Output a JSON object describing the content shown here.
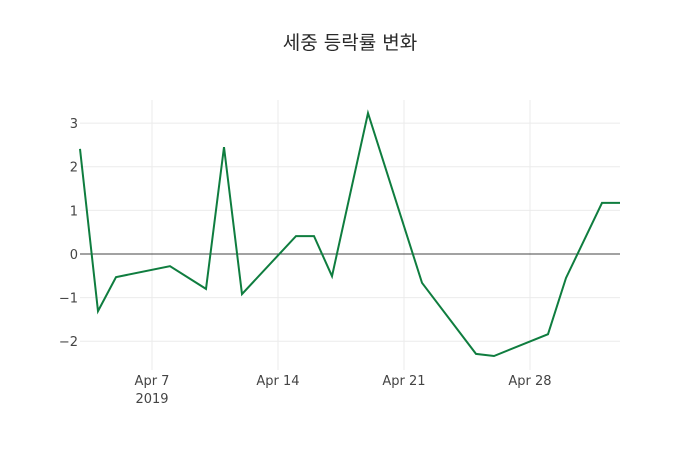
{
  "chart_data": {
    "type": "line",
    "title": "세중 등락률 변화",
    "xlabel": "",
    "ylabel": "",
    "x": [
      "2019-04-03",
      "2019-04-04",
      "2019-04-05",
      "2019-04-08",
      "2019-04-10",
      "2019-04-11",
      "2019-04-12",
      "2019-04-15",
      "2019-04-16",
      "2019-04-17",
      "2019-04-19",
      "2019-04-22",
      "2019-04-25",
      "2019-04-26",
      "2019-04-29",
      "2019-04-30",
      "2019-05-02",
      "2019-05-03"
    ],
    "series": [
      {
        "name": "등락률",
        "color": "#0f7d3f",
        "values": [
          2.41,
          -1.31,
          -0.53,
          -0.28,
          -0.8,
          2.45,
          -0.92,
          0.41,
          0.41,
          -0.51,
          3.23,
          -0.66,
          -2.29,
          -2.34,
          -1.84,
          -0.55,
          1.17,
          1.17
        ]
      }
    ],
    "xlim": [
      "2019-04-03",
      "2019-05-03"
    ],
    "ylim": [
      -2.66,
      3.53
    ],
    "x_ticks": [
      {
        "date": "2019-04-07",
        "label": "Apr 7",
        "sublabel": "2019"
      },
      {
        "date": "2019-04-14",
        "label": "Apr 14",
        "sublabel": ""
      },
      {
        "date": "2019-04-21",
        "label": "Apr 21",
        "sublabel": ""
      },
      {
        "date": "2019-04-28",
        "label": "Apr 28",
        "sublabel": ""
      }
    ],
    "y_ticks": [
      3,
      2,
      1,
      0,
      -1,
      -2
    ],
    "y_tick_labels": [
      "3",
      "2",
      "1",
      "0",
      "−1",
      "−2"
    ],
    "grid": true,
    "zero_line": true,
    "legend": "none"
  }
}
